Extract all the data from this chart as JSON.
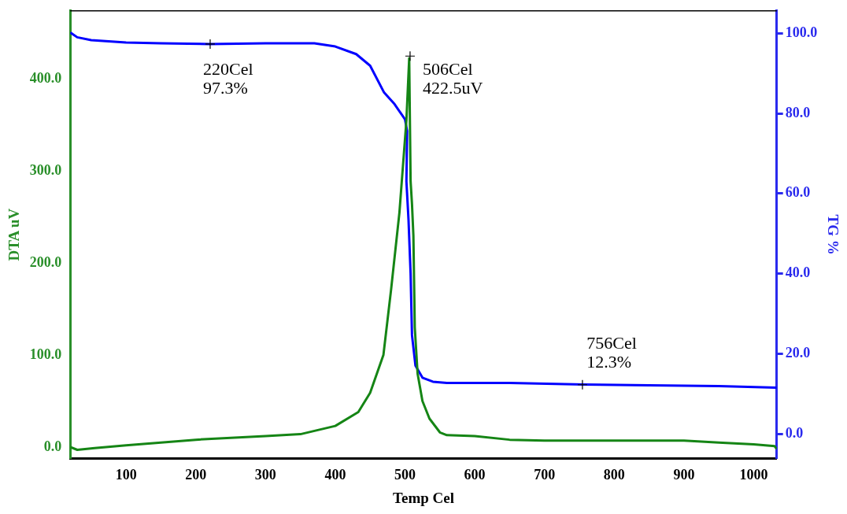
{
  "chart_data": {
    "type": "line",
    "xlabel": "Temp Cel",
    "ylabel": "DTA uV",
    "y2label": "TG %",
    "xlim": [
      20,
      1033
    ],
    "xticks": [
      100,
      200,
      300,
      400,
      500,
      600,
      700,
      800,
      900,
      1000
    ],
    "ylim": [
      -12.5,
      474
    ],
    "yticks": [
      {
        "value": 0,
        "label": "0.0"
      },
      {
        "value": 100,
        "label": "100.0"
      },
      {
        "value": 200,
        "label": "200.0"
      },
      {
        "value": 300,
        "label": "300.0"
      },
      {
        "value": 400,
        "label": "400.0"
      }
    ],
    "y2lim": [
      -6.2,
      105.6
    ],
    "y2ticks": [
      {
        "value": 0,
        "label": "0.0"
      },
      {
        "value": 20,
        "label": "20.0"
      },
      {
        "value": 40,
        "label": "40.0"
      },
      {
        "value": 60,
        "label": "60.0"
      },
      {
        "value": 80,
        "label": "80.0"
      },
      {
        "value": 100,
        "label": "100.0"
      }
    ],
    "grid": false,
    "legend": false,
    "marker": "none",
    "line_style": "solid",
    "series": [
      {
        "color": "#158515",
        "x": [
          20,
          30,
          55,
          100,
          200,
          300,
          350,
          400,
          433,
          450,
          469,
          480,
          492,
          502,
          506,
          508,
          510,
          512,
          514,
          518,
          525,
          535,
          550,
          560,
          600,
          650,
          700,
          900,
          950,
          1000,
          1030,
          1033
        ],
        "values": [
          0,
          -3,
          -1,
          2,
          8,
          12,
          14,
          23,
          38,
          59,
          100,
          171,
          255,
          355,
          422.5,
          289,
          264,
          230,
          130,
          80,
          50,
          31,
          16,
          13,
          12,
          8,
          7,
          7,
          5,
          3,
          1,
          -2
        ]
      },
      {
        "color": "#0000ff",
        "axis": "y2",
        "x": [
          20,
          30,
          50,
          100,
          150,
          220,
          300,
          370,
          400,
          430,
          450,
          470,
          485,
          500,
          503,
          502,
          505,
          508,
          510,
          515,
          525,
          540,
          560,
          650,
          756,
          850,
          950,
          1033
        ],
        "values": [
          100.2,
          99,
          98.3,
          97.7,
          97.5,
          97.3,
          97.5,
          97.5,
          96.7,
          94.8,
          91.9,
          85.2,
          82.3,
          78.5,
          75.6,
          63,
          53.5,
          40,
          24.6,
          17,
          14,
          13,
          12.7,
          12.7,
          12.3,
          12.1,
          11.9,
          11.5
        ]
      }
    ],
    "annotations": [
      "220Cel\n97.3%",
      "506Cel\n422.5uV",
      "756Cel\n12.3%"
    ]
  }
}
